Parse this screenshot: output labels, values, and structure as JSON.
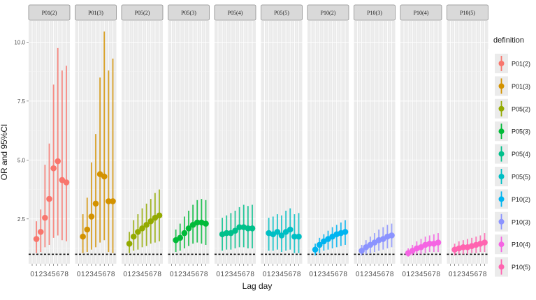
{
  "chart_data": {
    "type": "scatter",
    "error_bars": true,
    "facet_by": "definition",
    "ylabel": "OR and 95%CI",
    "xlabel": "Lag day",
    "y_ticks": [
      "2.5",
      "5.0",
      "7.5",
      "10.0"
    ],
    "y_tick_values": [
      2.5,
      5.0,
      7.5,
      10.0
    ],
    "ylim": [
      0.6,
      10.9
    ],
    "x_ticks": [
      "0",
      "1",
      "2",
      "3",
      "4",
      "5",
      "6",
      "7",
      "8"
    ],
    "reference_line": 1.0,
    "grid": true,
    "legend": {
      "title": "definition",
      "position": "right"
    },
    "series": [
      {
        "name": "P01(2)",
        "color": "#F8766D",
        "or": [
          1.65,
          1.95,
          2.55,
          3.35,
          4.65,
          4.95,
          4.15,
          4.05
        ],
        "lower": [
          1.05,
          1.1,
          1.3,
          1.4,
          1.7,
          1.8,
          1.6,
          1.55
        ],
        "upper": [
          2.4,
          2.9,
          4.8,
          5.7,
          8.2,
          9.75,
          8.8,
          9.0
        ]
      },
      {
        "name": "P01(3)",
        "color": "#D39200",
        "or": [
          1.75,
          2.05,
          2.6,
          3.15,
          4.4,
          4.3,
          3.25,
          3.25
        ],
        "lower": [
          1.05,
          1.1,
          1.2,
          1.3,
          1.5,
          1.6,
          1.1,
          1.05
        ],
        "upper": [
          2.7,
          3.4,
          4.9,
          6.1,
          8.5,
          10.45,
          8.8,
          9.3
        ]
      },
      {
        "name": "P05(2)",
        "color": "#93AA00",
        "or": [
          1.45,
          1.75,
          1.95,
          2.1,
          2.25,
          2.4,
          2.55,
          2.65
        ],
        "lower": [
          1.05,
          1.15,
          1.2,
          1.3,
          1.35,
          1.45,
          1.5,
          1.55
        ],
        "upper": [
          1.95,
          2.45,
          2.7,
          2.95,
          3.15,
          3.35,
          3.6,
          3.75
        ]
      },
      {
        "name": "P05(3)",
        "color": "#00BA38",
        "or": [
          1.6,
          1.7,
          1.9,
          2.1,
          2.25,
          2.35,
          2.35,
          2.3
        ],
        "lower": [
          1.1,
          1.15,
          1.25,
          1.35,
          1.45,
          1.5,
          1.45,
          1.4
        ],
        "upper": [
          2.05,
          2.3,
          2.6,
          2.85,
          3.1,
          3.3,
          3.35,
          3.3
        ]
      },
      {
        "name": "P05(4)",
        "color": "#00C08B",
        "or": [
          1.85,
          1.9,
          1.9,
          2.0,
          2.15,
          2.15,
          2.1,
          2.1
        ],
        "lower": [
          1.15,
          1.2,
          1.2,
          1.25,
          1.3,
          1.3,
          1.25,
          1.25
        ],
        "upper": [
          2.55,
          2.65,
          2.75,
          2.85,
          3.0,
          3.1,
          3.05,
          3.1
        ]
      },
      {
        "name": "P05(5)",
        "color": "#00BFC4",
        "or": [
          1.9,
          1.85,
          1.95,
          1.8,
          1.95,
          2.05,
          1.75,
          1.75
        ],
        "lower": [
          1.15,
          1.15,
          1.2,
          1.1,
          1.15,
          1.2,
          1.05,
          1.05
        ],
        "upper": [
          2.55,
          2.6,
          2.7,
          2.65,
          2.85,
          2.95,
          2.7,
          2.75
        ]
      },
      {
        "name": "P10(2)",
        "color": "#00B4F0",
        "or": [
          1.2,
          1.4,
          1.55,
          1.65,
          1.75,
          1.85,
          1.9,
          1.95
        ],
        "lower": [
          0.95,
          1.05,
          1.15,
          1.2,
          1.25,
          1.3,
          1.35,
          1.4
        ],
        "upper": [
          1.45,
          1.7,
          1.85,
          2.0,
          2.15,
          2.25,
          2.35,
          2.45
        ]
      },
      {
        "name": "P10(3)",
        "color": "#8B93FF",
        "or": [
          1.15,
          1.3,
          1.4,
          1.5,
          1.6,
          1.65,
          1.75,
          1.8
        ],
        "lower": [
          0.95,
          1.0,
          1.05,
          1.1,
          1.15,
          1.2,
          1.25,
          1.3
        ],
        "upper": [
          1.4,
          1.6,
          1.75,
          1.9,
          2.05,
          2.15,
          2.25,
          2.3
        ]
      },
      {
        "name": "P10(4)",
        "color": "#F564E3",
        "or": [
          1.05,
          1.15,
          1.25,
          1.3,
          1.4,
          1.45,
          1.45,
          1.5
        ],
        "lower": [
          0.9,
          0.95,
          1.0,
          1.0,
          1.05,
          1.1,
          1.1,
          1.1
        ],
        "upper": [
          1.25,
          1.4,
          1.55,
          1.65,
          1.75,
          1.8,
          1.85,
          1.9
        ]
      },
      {
        "name": "P10(5)",
        "color": "#FF64B0",
        "or": [
          1.2,
          1.25,
          1.3,
          1.3,
          1.35,
          1.4,
          1.45,
          1.5
        ],
        "lower": [
          0.95,
          1.0,
          1.0,
          1.0,
          1.05,
          1.05,
          1.1,
          1.1
        ],
        "upper": [
          1.45,
          1.55,
          1.6,
          1.65,
          1.7,
          1.75,
          1.8,
          1.9
        ]
      }
    ]
  }
}
